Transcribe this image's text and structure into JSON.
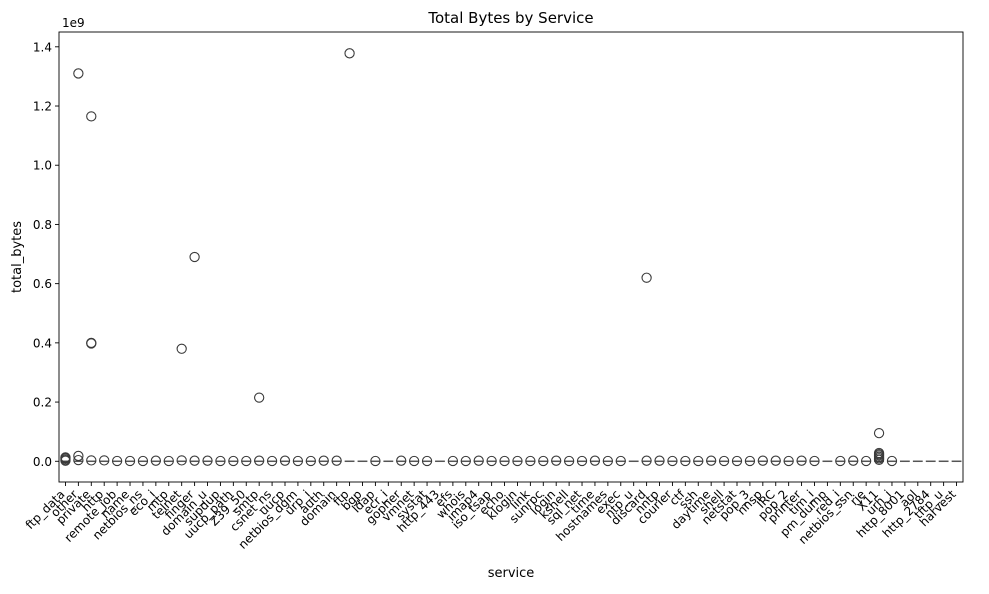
{
  "chart_data": {
    "type": "boxplot",
    "title": "Total Bytes by Service",
    "xlabel": "service",
    "ylabel": "total_bytes",
    "y_offset_label": "1e9",
    "ylim": [
      -0.07,
      1.45
    ],
    "y_unit_multiplier": 1000000000,
    "y_ticks": [
      0.0,
      0.2,
      0.4,
      0.6,
      0.8,
      1.0,
      1.2,
      1.4
    ],
    "y_tick_labels": [
      "0.0",
      "0.2",
      "0.4",
      "0.6",
      "0.8",
      "1.0",
      "1.2",
      "1.4"
    ],
    "grid": false,
    "box_color": "#555555",
    "categories": [
      "ftp_data",
      "other",
      "private",
      "http",
      "remote_job",
      "name",
      "netbios_ns",
      "eco_i",
      "mtp",
      "telnet",
      "finger",
      "domain_u",
      "supdup",
      "uucp_path",
      "Z39_50",
      "smtp",
      "csnet_ns",
      "uucp",
      "netbios_dgm",
      "urp_i",
      "auth",
      "domain",
      "ftp",
      "bgp",
      "ldap",
      "ecr_i",
      "gopher",
      "vmnet",
      "systat",
      "http_443",
      "efs",
      "whois",
      "imap4",
      "iso_tsap",
      "echo",
      "klogin",
      "link",
      "sunrpc",
      "login",
      "kshell",
      "sql_net",
      "time",
      "hostnames",
      "exec",
      "ntp_u",
      "discard",
      "nntp",
      "courier",
      "ctf",
      "ssh",
      "daytime",
      "shell",
      "netstat",
      "pop_3",
      "nnsp",
      "IRC",
      "pop_2",
      "printer",
      "tim_i",
      "pm_dump",
      "red_i",
      "netbios_ssn",
      "rje",
      "X11",
      "urh_i",
      "http_8001",
      "aol",
      "http_2784",
      "tftp_u",
      "harvest"
    ],
    "outliers": [
      {
        "category": "ftp_data",
        "values": [
          0.002,
          0.006,
          0.01,
          0.013
        ]
      },
      {
        "category": "other",
        "values": [
          1.31,
          0.018,
          0.004
        ]
      },
      {
        "category": "private",
        "values": [
          1.165,
          0.4,
          0.398,
          0.003
        ]
      },
      {
        "category": "http",
        "values": [
          0.003
        ]
      },
      {
        "category": "remote_job",
        "values": [
          0.001
        ]
      },
      {
        "category": "name",
        "values": [
          0.001
        ]
      },
      {
        "category": "netbios_ns",
        "values": [
          0.001
        ]
      },
      {
        "category": "eco_i",
        "values": [
          0.002
        ]
      },
      {
        "category": "mtp",
        "values": [
          0.001
        ]
      },
      {
        "category": "telnet",
        "values": [
          0.38,
          0.003
        ]
      },
      {
        "category": "finger",
        "values": [
          0.69,
          0.002
        ]
      },
      {
        "category": "domain_u",
        "values": [
          0.002
        ]
      },
      {
        "category": "supdup",
        "values": [
          0.001
        ]
      },
      {
        "category": "uucp_path",
        "values": [
          0.001
        ]
      },
      {
        "category": "Z39_50",
        "values": [
          0.001
        ]
      },
      {
        "category": "smtp",
        "values": [
          0.215,
          0.002
        ]
      },
      {
        "category": "csnet_ns",
        "values": [
          0.001
        ]
      },
      {
        "category": "uucp",
        "values": [
          0.002
        ]
      },
      {
        "category": "netbios_dgm",
        "values": [
          0.001
        ]
      },
      {
        "category": "urp_i",
        "values": [
          0.001
        ]
      },
      {
        "category": "auth",
        "values": [
          0.002
        ]
      },
      {
        "category": "domain",
        "values": [
          0.002
        ]
      },
      {
        "category": "ftp",
        "values": [
          1.378
        ]
      },
      {
        "category": "ldap",
        "values": [
          0.001
        ]
      },
      {
        "category": "gopher",
        "values": [
          0.002
        ]
      },
      {
        "category": "vmnet",
        "values": [
          0.001
        ]
      },
      {
        "category": "systat",
        "values": [
          0.001
        ]
      },
      {
        "category": "efs",
        "values": [
          0.001
        ]
      },
      {
        "category": "whois",
        "values": [
          0.001
        ]
      },
      {
        "category": "imap4",
        "values": [
          0.002
        ]
      },
      {
        "category": "iso_tsap",
        "values": [
          0.001
        ]
      },
      {
        "category": "echo",
        "values": [
          0.001
        ]
      },
      {
        "category": "klogin",
        "values": [
          0.001
        ]
      },
      {
        "category": "link",
        "values": [
          0.001
        ]
      },
      {
        "category": "sunrpc",
        "values": [
          0.001
        ]
      },
      {
        "category": "login",
        "values": [
          0.002
        ]
      },
      {
        "category": "kshell",
        "values": [
          0.001
        ]
      },
      {
        "category": "sql_net",
        "values": [
          0.001
        ]
      },
      {
        "category": "time",
        "values": [
          0.002
        ]
      },
      {
        "category": "hostnames",
        "values": [
          0.001
        ]
      },
      {
        "category": "exec",
        "values": [
          0.001
        ]
      },
      {
        "category": "discard",
        "values": [
          0.002,
          0.62
        ]
      },
      {
        "category": "nntp",
        "values": [
          0.002
        ]
      },
      {
        "category": "courier",
        "values": [
          0.001
        ]
      },
      {
        "category": "ctf",
        "values": [
          0.001
        ]
      },
      {
        "category": "ssh",
        "values": [
          0.001
        ]
      },
      {
        "category": "daytime",
        "values": [
          0.002
        ]
      },
      {
        "category": "shell",
        "values": [
          0.001
        ]
      },
      {
        "category": "netstat",
        "values": [
          0.001
        ]
      },
      {
        "category": "pop_3",
        "values": [
          0.001
        ]
      },
      {
        "category": "nnsp",
        "values": [
          0.002
        ]
      },
      {
        "category": "IRC",
        "values": [
          0.002
        ]
      },
      {
        "category": "pop_2",
        "values": [
          0.001
        ]
      },
      {
        "category": "printer",
        "values": [
          0.002
        ]
      },
      {
        "category": "tim_i",
        "values": [
          0.001
        ]
      },
      {
        "category": "red_i",
        "values": [
          0.001
        ]
      },
      {
        "category": "netbios_ssn",
        "values": [
          0.002
        ]
      },
      {
        "category": "rje",
        "values": [
          0.001
        ]
      },
      {
        "category": "X11",
        "values": [
          0.095,
          0.028,
          0.024,
          0.02,
          0.015,
          0.01,
          0.005
        ]
      },
      {
        "category": "urh_i",
        "values": [
          0.001
        ]
      }
    ]
  }
}
